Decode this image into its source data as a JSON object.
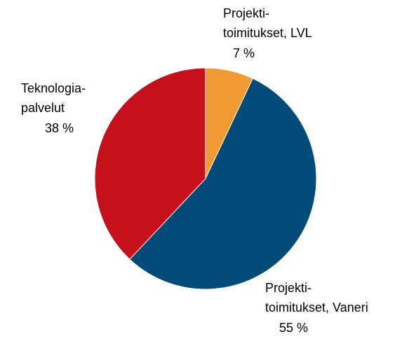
{
  "chart_data": {
    "type": "pie",
    "categories": [
      [
        "Projekti-",
        "toimitukset, LVL"
      ],
      [
        "Projekti-",
        "toimitukset, Vaneri"
      ],
      [
        "Teknologia-",
        "palvelut"
      ]
    ],
    "values": [
      7,
      55,
      38
    ],
    "value_labels": [
      "7 %",
      "55 %",
      "38 %"
    ],
    "colors": [
      "#f09a34",
      "#004b78",
      "#c8101c"
    ]
  }
}
